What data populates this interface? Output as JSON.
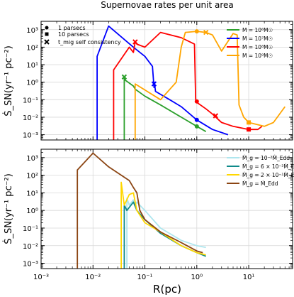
{
  "chart_data": [
    {
      "type": "line",
      "title": "Supernovae rates per unit area",
      "ylabel": "Ṡ_SN(yr⁻¹ pc⁻²)",
      "xlabel": "",
      "xscale": "log",
      "yscale": "log",
      "xlim": [
        0.001,
        70
      ],
      "ylim": [
        0.0005,
        3000
      ],
      "grid": true,
      "legend_location": "top-right",
      "marker_legend": [
        {
          "symbol": "circle",
          "label": "1 parsecs"
        },
        {
          "symbol": "square",
          "label": "10 parsecs"
        },
        {
          "symbol": "x",
          "label": "t_mig self consistency"
        }
      ],
      "series": [
        {
          "name": "M = 10⁶M☉",
          "color": "#2ca02c",
          "points": [
            [
              0.04,
              0.0005
            ],
            [
              0.04,
              2.0
            ],
            [
              0.042,
              1.3
            ],
            [
              0.06,
              0.6
            ],
            [
              0.065,
              0.4
            ],
            [
              0.1,
              0.16
            ],
            [
              0.2,
              0.05
            ],
            [
              0.5,
              0.01
            ],
            [
              1.0,
              0.003
            ],
            [
              1.5,
              0.0015
            ]
          ],
          "markers": [
            {
              "x": 0.04,
              "y": 2.0,
              "m": "x"
            },
            {
              "x": 1.0,
              "y": 0.003,
              "m": "circle"
            }
          ]
        },
        {
          "name": "M = 10⁷M☉",
          "color": "#0000ff",
          "points": [
            [
              0.012,
              0.0005
            ],
            [
              0.012,
              30
            ],
            [
              0.02,
              1600
            ],
            [
              0.06,
              100
            ],
            [
              0.1,
              30
            ],
            [
              0.14,
              8
            ],
            [
              0.15,
              0.5
            ],
            [
              0.152,
              1.0
            ],
            [
              0.16,
              0.3
            ],
            [
              0.3,
              0.1
            ],
            [
              0.5,
              0.04
            ],
            [
              1.0,
              0.007
            ],
            [
              2.0,
              0.002
            ],
            [
              4.0,
              0.001
            ]
          ],
          "markers": [
            {
              "x": 0.15,
              "y": 0.8,
              "m": "x"
            },
            {
              "x": 1.0,
              "y": 0.007,
              "m": "circle"
            }
          ]
        },
        {
          "name": "M = 10⁸M☉",
          "color": "#ff0000",
          "points": [
            [
              0.025,
              0.0005
            ],
            [
              0.025,
              5
            ],
            [
              0.05,
              100
            ],
            [
              0.06,
              50
            ],
            [
              0.065,
              200
            ],
            [
              0.07,
              150
            ],
            [
              0.1,
              100
            ],
            [
              0.2,
              700
            ],
            [
              0.5,
              350
            ],
            [
              0.9,
              150
            ],
            [
              0.95,
              0.1
            ],
            [
              1.0,
              0.07
            ],
            [
              1.5,
              0.03
            ],
            [
              2.0,
              0.015
            ],
            [
              3.0,
              0.005
            ],
            [
              5.0,
              0.003
            ],
            [
              10.0,
              0.002
            ],
            [
              15.0,
              0.002
            ],
            [
              18.0,
              0.003
            ]
          ],
          "markers": [
            {
              "x": 0.065,
              "y": 200,
              "m": "x"
            },
            {
              "x": 1.0,
              "y": 0.08,
              "m": "circle"
            },
            {
              "x": 2.3,
              "y": 0.012,
              "m": "x"
            },
            {
              "x": 10.0,
              "y": 0.002,
              "m": "square"
            }
          ]
        },
        {
          "name": "M = 10⁹M☉",
          "color": "#ffa500",
          "points": [
            [
              0.065,
              0.0005
            ],
            [
              0.065,
              0.8
            ],
            [
              0.2,
              0.1
            ],
            [
              0.4,
              1.0
            ],
            [
              0.5,
              100
            ],
            [
              0.6,
              700
            ],
            [
              1.0,
              800
            ],
            [
              1.5,
              700
            ],
            [
              2.0,
              500
            ],
            [
              3.0,
              60
            ],
            [
              5.0,
              600
            ],
            [
              6.0,
              500
            ],
            [
              6.5,
              0.05
            ],
            [
              8.0,
              0.01
            ],
            [
              10.0,
              0.005
            ],
            [
              20.0,
              0.003
            ],
            [
              30.0,
              0.005
            ],
            [
              50.0,
              0.04
            ]
          ],
          "markers": [
            {
              "x": 1.0,
              "y": 800,
              "m": "circle"
            },
            {
              "x": 1.5,
              "y": 700,
              "m": "x"
            },
            {
              "x": 10.0,
              "y": 0.005,
              "m": "square"
            }
          ]
        }
      ]
    },
    {
      "type": "line",
      "title": "",
      "ylabel": "Ṡ_SN(yr⁻¹ pc⁻²)",
      "xlabel": "R(pc)",
      "xscale": "log",
      "yscale": "log",
      "xlim": [
        0.001,
        70
      ],
      "ylim": [
        0.0005,
        3000
      ],
      "grid": true,
      "legend_location": "top-right",
      "series": [
        {
          "name": "Ṁ_g = 10⁻²Ṁ_Edd",
          "color": "#aee6ee",
          "points": [
            [
              0.045,
              0.0005
            ],
            [
              0.045,
              5
            ],
            [
              0.05,
              2
            ],
            [
              0.06,
              4
            ],
            [
              0.065,
              2
            ],
            [
              0.07,
              3
            ],
            [
              0.1,
              1
            ],
            [
              0.2,
              0.1
            ],
            [
              0.5,
              0.02
            ],
            [
              1.0,
              0.01
            ],
            [
              1.5,
              0.008
            ]
          ]
        },
        {
          "name": "Ṁ_g = 6 × 10⁻²Ṁ_Edd",
          "color": "#0f8a8a",
          "points": [
            [
              0.04,
              0.0005
            ],
            [
              0.04,
              2
            ],
            [
              0.045,
              1
            ],
            [
              0.06,
              3
            ],
            [
              0.07,
              1
            ],
            [
              0.1,
              0.3
            ],
            [
              0.2,
              0.05
            ],
            [
              0.5,
              0.01
            ],
            [
              1.0,
              0.004
            ],
            [
              1.5,
              0.0025
            ]
          ]
        },
        {
          "name": "Ṁ_g = 2 × 10⁻¹Ṁ_Edd",
          "color": "#ffd700",
          "points": [
            [
              0.035,
              0.0005
            ],
            [
              0.035,
              40
            ],
            [
              0.04,
              2
            ],
            [
              0.05,
              8
            ],
            [
              0.06,
              10
            ],
            [
              0.07,
              1
            ],
            [
              0.1,
              0.2
            ],
            [
              0.2,
              0.06
            ],
            [
              0.5,
              0.01
            ],
            [
              1.0,
              0.004
            ],
            [
              1.5,
              0.003
            ]
          ]
        },
        {
          "name": "Ṁ_g = Ṁ_Edd",
          "color": "#8b4513",
          "points": [
            [
              0.005,
              0.0005
            ],
            [
              0.005,
              200
            ],
            [
              0.01,
              1800
            ],
            [
              0.02,
              300
            ],
            [
              0.05,
              50
            ],
            [
              0.06,
              20
            ],
            [
              0.07,
              10
            ],
            [
              0.08,
              1
            ],
            [
              0.1,
              0.3
            ],
            [
              0.2,
              0.06
            ],
            [
              0.5,
              0.015
            ],
            [
              1.0,
              0.005
            ],
            [
              1.3,
              0.004
            ]
          ]
        }
      ]
    }
  ]
}
